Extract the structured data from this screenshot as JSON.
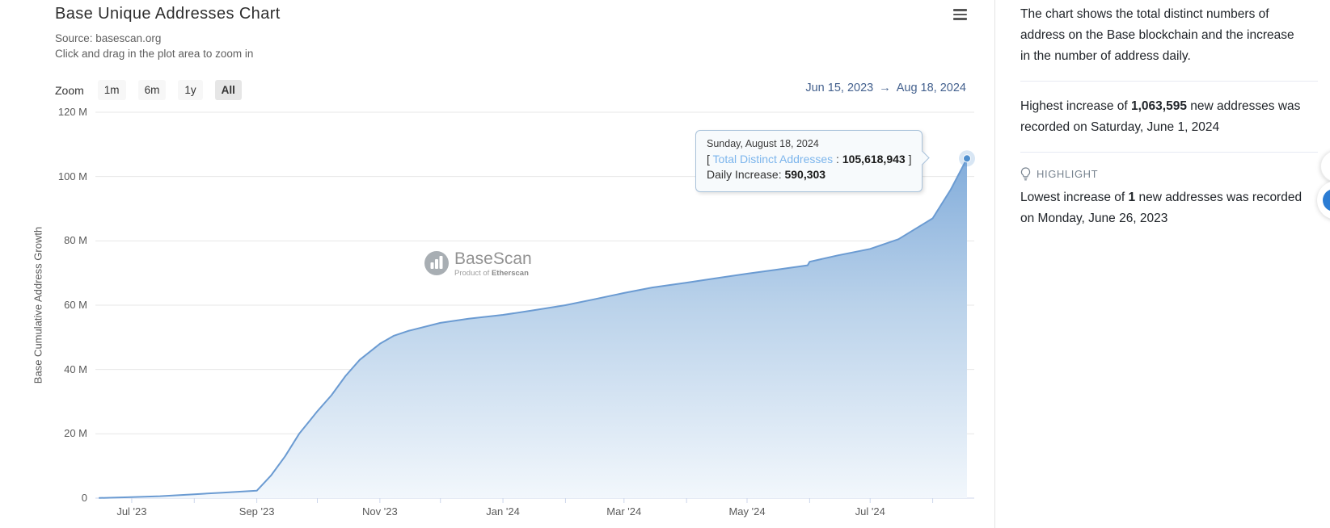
{
  "header": {
    "title": "Base Unique Addresses Chart",
    "source": "Source: basescan.org",
    "hint": "Click and drag in the plot area to zoom in"
  },
  "toolbar": {
    "zoom_label": "Zoom",
    "options": [
      "1m",
      "6m",
      "1y",
      "All"
    ],
    "active": "All"
  },
  "range": {
    "from": "Jun 15, 2023",
    "arrow": "→",
    "to": "Aug 18, 2024"
  },
  "watermark": {
    "name": "BaseScan",
    "sub_prefix": "Product of ",
    "sub_bold": "Etherscan"
  },
  "tooltip": {
    "date_line": "Sunday, August 18, 2024",
    "bracket_open": "[ ",
    "series_label": "Total Distinct Addresses",
    "separator": " : ",
    "value": "105,618,943",
    "bracket_close": " ]",
    "daily_label": "Daily Increase: ",
    "daily_value": "590,303"
  },
  "sidebar": {
    "description": "The chart shows the total distinct numbers of address on the Base blockchain and the increase in the number of address daily.",
    "highest": {
      "prefix": "Highest increase of ",
      "value": "1,063,595",
      "suffix": " new addresses was recorded on Saturday, June 1, 2024"
    },
    "highlight_label": "HIGHLIGHT",
    "lowest": {
      "prefix": "Lowest increase of ",
      "value": "1",
      "suffix": " new addresses was recorded on Monday, June 26, 2023"
    }
  },
  "chart_data": {
    "type": "area",
    "title": "Base Unique Addresses Chart",
    "xlabel": "",
    "ylabel": "Base Cumulative Address Growth",
    "x_range": [
      "2023-06-15",
      "2024-08-18"
    ],
    "ylim_millions": [
      0,
      120
    ],
    "grid": "horizontal",
    "legend": "none",
    "yticks": [
      {
        "v": 0,
        "label": "0"
      },
      {
        "v": 20,
        "label": "20 M"
      },
      {
        "v": 40,
        "label": "40 M"
      },
      {
        "v": 60,
        "label": "60 M"
      },
      {
        "v": 80,
        "label": "80 M"
      },
      {
        "v": 100,
        "label": "100 M"
      },
      {
        "v": 120,
        "label": "120 M"
      }
    ],
    "xticks": [
      {
        "date": "2023-07-01",
        "label": "Jul '23"
      },
      {
        "date": "2023-09-01",
        "label": "Sep '23"
      },
      {
        "date": "2023-11-01",
        "label": "Nov '23"
      },
      {
        "date": "2024-01-01",
        "label": "Jan '24"
      },
      {
        "date": "2024-03-01",
        "label": "Mar '24"
      },
      {
        "date": "2024-05-01",
        "label": "May '24"
      },
      {
        "date": "2024-07-01",
        "label": "Jul '24"
      }
    ],
    "series": [
      {
        "name": "Total Distinct Addresses",
        "unit": "million addresses (values estimated from plot; last point exact)",
        "points": [
          [
            "2023-06-15",
            0.05
          ],
          [
            "2023-07-01",
            0.3
          ],
          [
            "2023-07-15",
            0.6
          ],
          [
            "2023-08-01",
            1.2
          ],
          [
            "2023-08-15",
            1.7
          ],
          [
            "2023-09-01",
            2.3
          ],
          [
            "2023-09-08",
            7
          ],
          [
            "2023-09-15",
            13
          ],
          [
            "2023-09-22",
            20
          ],
          [
            "2023-10-01",
            27
          ],
          [
            "2023-10-08",
            32
          ],
          [
            "2023-10-15",
            38
          ],
          [
            "2023-10-22",
            43
          ],
          [
            "2023-11-01",
            48
          ],
          [
            "2023-11-08",
            50.5
          ],
          [
            "2023-11-15",
            52
          ],
          [
            "2023-12-01",
            54.5
          ],
          [
            "2023-12-15",
            55.8
          ],
          [
            "2024-01-01",
            57
          ],
          [
            "2024-01-15",
            58.3
          ],
          [
            "2024-02-01",
            60
          ],
          [
            "2024-02-15",
            61.8
          ],
          [
            "2024-03-01",
            63.8
          ],
          [
            "2024-03-15",
            65.5
          ],
          [
            "2024-04-01",
            67
          ],
          [
            "2024-04-15",
            68.3
          ],
          [
            "2024-05-01",
            69.8
          ],
          [
            "2024-05-15",
            71
          ],
          [
            "2024-05-31",
            72.4
          ],
          [
            "2024-06-01",
            73.5
          ],
          [
            "2024-06-15",
            75.5
          ],
          [
            "2024-07-01",
            77.5
          ],
          [
            "2024-07-15",
            80.5
          ],
          [
            "2024-08-01",
            87
          ],
          [
            "2024-08-10",
            96
          ],
          [
            "2024-08-15",
            102
          ],
          [
            "2024-08-18",
            105.618943
          ]
        ],
        "last_point": {
          "date": "2024-08-18",
          "total": "105,618,943",
          "daily_increase": "590,303"
        }
      }
    ],
    "colors": {
      "line": "#6b9bd2",
      "area_top": "#71a1d6",
      "area_mid": "#bad2ea",
      "area_bottom": "#f2f7fc",
      "marker": "#4f8fce",
      "grid": "#e7e7e7",
      "axis": "#ccd6eb",
      "series_label_blue": "#7cb5ec"
    }
  }
}
